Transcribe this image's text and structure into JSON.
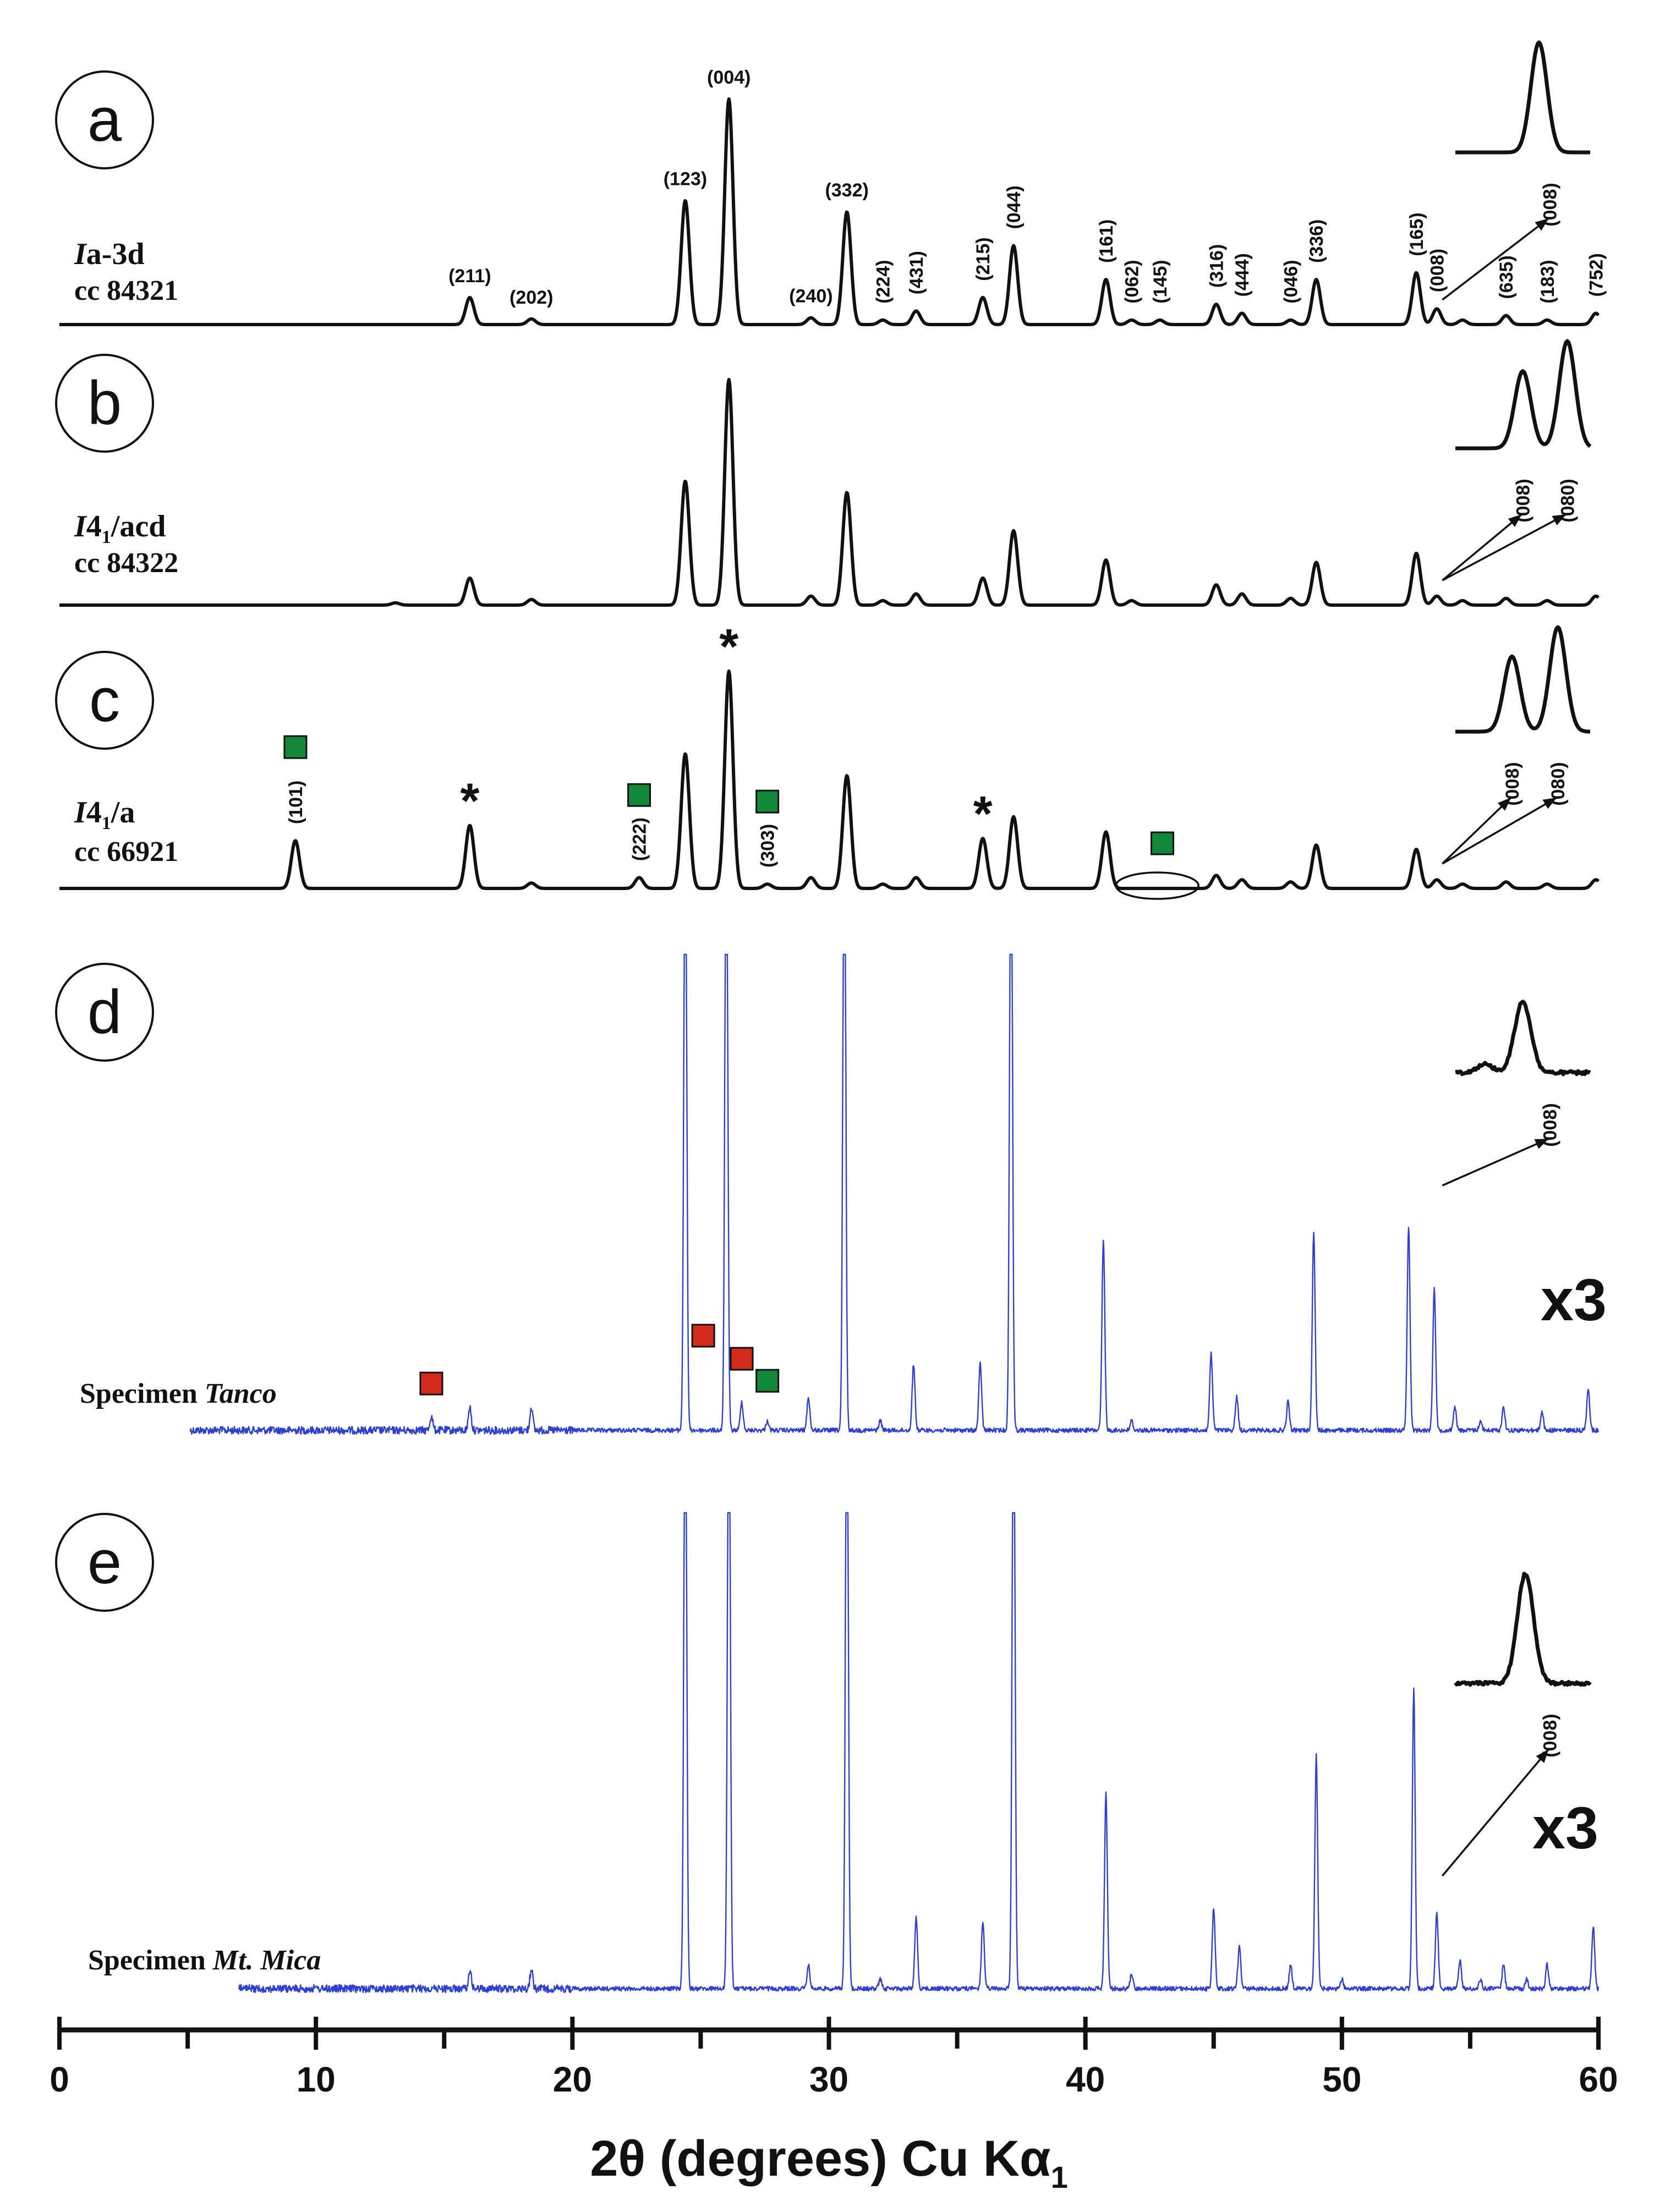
{
  "colors": {
    "calc_trace": "#111111",
    "exp_trace": "#2f3fd0",
    "green_marker": "#12873a",
    "red_marker": "#d42a1e"
  },
  "chart_data": {
    "type": "line",
    "xlabel_main": "2θ (degrees) Cu Kα",
    "xlabel_sub": "1",
    "xlim": [
      0,
      60
    ],
    "xticks": [
      0,
      10,
      20,
      30,
      40,
      50,
      60
    ],
    "minor_xticks": [
      5,
      15,
      25,
      35,
      45,
      55
    ],
    "panels": [
      {
        "letter": "a",
        "label_italic": "I",
        "label_rest": "a-3d",
        "label_sub": "",
        "code": "cc 84321",
        "kind": "calculated",
        "x_start": 0,
        "peaks": [
          {
            "x": 16.0,
            "h": 0.12
          },
          {
            "x": 18.4,
            "h": 0.025
          },
          {
            "x": 24.4,
            "h": 0.55
          },
          {
            "x": 26.1,
            "h": 1.0
          },
          {
            "x": 29.3,
            "h": 0.03
          },
          {
            "x": 30.7,
            "h": 0.5
          },
          {
            "x": 32.1,
            "h": 0.02
          },
          {
            "x": 33.4,
            "h": 0.06
          },
          {
            "x": 36.0,
            "h": 0.12
          },
          {
            "x": 37.2,
            "h": 0.35
          },
          {
            "x": 40.8,
            "h": 0.2
          },
          {
            "x": 41.8,
            "h": 0.02
          },
          {
            "x": 42.9,
            "h": 0.02
          },
          {
            "x": 45.1,
            "h": 0.09
          },
          {
            "x": 46.1,
            "h": 0.05
          },
          {
            "x": 48.0,
            "h": 0.02
          },
          {
            "x": 49.0,
            "h": 0.2
          },
          {
            "x": 52.9,
            "h": 0.23
          },
          {
            "x": 53.7,
            "h": 0.07
          },
          {
            "x": 54.7,
            "h": 0.02
          },
          {
            "x": 56.4,
            "h": 0.04
          },
          {
            "x": 58.0,
            "h": 0.02
          },
          {
            "x": 59.9,
            "h": 0.05
          }
        ],
        "annotations": [
          {
            "text": "(004)",
            "x": 26.1,
            "dir": "h"
          },
          {
            "text": "(123)",
            "x": 24.4,
            "dir": "h"
          },
          {
            "text": "(332)",
            "x": 30.7,
            "dir": "h"
          },
          {
            "text": "(211)",
            "x": 16.0,
            "dir": "h"
          },
          {
            "text": "(202)",
            "x": 18.4,
            "dir": "h"
          },
          {
            "text": "(240)",
            "x": 29.3,
            "dir": "h"
          },
          {
            "text": "(224)",
            "x": 32.1,
            "dir": "v"
          },
          {
            "text": "(431)",
            "x": 33.4,
            "dir": "v"
          },
          {
            "text": "(215)",
            "x": 36.0,
            "dir": "v"
          },
          {
            "text": "(044)",
            "x": 37.2,
            "dir": "v"
          },
          {
            "text": "(161)",
            "x": 40.8,
            "dir": "v"
          },
          {
            "text": "(062)",
            "x": 41.8,
            "dir": "v"
          },
          {
            "text": "(145)",
            "x": 42.9,
            "dir": "v"
          },
          {
            "text": "(316)",
            "x": 45.1,
            "dir": "v"
          },
          {
            "text": "(444)",
            "x": 46.1,
            "dir": "v"
          },
          {
            "text": "(046)",
            "x": 48.0,
            "dir": "v"
          },
          {
            "text": "(336)",
            "x": 49.0,
            "dir": "v"
          },
          {
            "text": "(165)",
            "x": 52.9,
            "dir": "v"
          },
          {
            "text": "(008)",
            "x": 53.7,
            "dir": "v"
          },
          {
            "text": "(635)",
            "x": 56.4,
            "dir": "v"
          },
          {
            "text": "(183)",
            "x": 58.0,
            "dir": "v"
          },
          {
            "text": "(752)",
            "x": 59.9,
            "dir": "v"
          }
        ],
        "inset": {
          "peaks": [
            {
              "p": 0.62,
              "h": 1.0
            }
          ],
          "labels": [
            "(008)"
          ]
        },
        "stars": [],
        "green_markers": [],
        "red_markers": []
      },
      {
        "letter": "b",
        "label_italic": "I",
        "label_rest": "4",
        "label_sub": "1",
        "label_tail": "/acd",
        "code": "cc 84322",
        "kind": "calculated",
        "x_start": 0,
        "peaks": [
          {
            "x": 13.1,
            "h": 0.01
          },
          {
            "x": 16.0,
            "h": 0.12
          },
          {
            "x": 18.4,
            "h": 0.025
          },
          {
            "x": 24.4,
            "h": 0.55
          },
          {
            "x": 26.1,
            "h": 1.0
          },
          {
            "x": 29.3,
            "h": 0.04
          },
          {
            "x": 30.7,
            "h": 0.5
          },
          {
            "x": 32.1,
            "h": 0.02
          },
          {
            "x": 33.4,
            "h": 0.05
          },
          {
            "x": 36.0,
            "h": 0.12
          },
          {
            "x": 37.2,
            "h": 0.33
          },
          {
            "x": 40.8,
            "h": 0.2
          },
          {
            "x": 41.8,
            "h": 0.02
          },
          {
            "x": 45.1,
            "h": 0.09
          },
          {
            "x": 46.1,
            "h": 0.05
          },
          {
            "x": 48.0,
            "h": 0.03
          },
          {
            "x": 49.0,
            "h": 0.19
          },
          {
            "x": 52.9,
            "h": 0.23
          },
          {
            "x": 53.7,
            "h": 0.04
          },
          {
            "x": 54.7,
            "h": 0.02
          },
          {
            "x": 56.4,
            "h": 0.03
          },
          {
            "x": 58.0,
            "h": 0.02
          },
          {
            "x": 59.9,
            "h": 0.04
          }
        ],
        "annotations": [],
        "inset": {
          "peaks": [
            {
              "p": 0.5,
              "h": 0.72
            },
            {
              "p": 0.83,
              "h": 1.0
            }
          ],
          "labels": [
            "(008)",
            "(080)"
          ]
        },
        "stars": [],
        "green_markers": [],
        "red_markers": []
      },
      {
        "letter": "c",
        "label_italic": "I",
        "label_rest": "4",
        "label_sub": "1",
        "label_tail": "/a",
        "code": "cc 66921",
        "kind": "calculated",
        "x_start": 0,
        "peaks": [
          {
            "x": 9.2,
            "h": 0.22
          },
          {
            "x": 16.0,
            "h": 0.29
          },
          {
            "x": 18.4,
            "h": 0.025
          },
          {
            "x": 22.6,
            "h": 0.05
          },
          {
            "x": 24.4,
            "h": 0.62
          },
          {
            "x": 26.1,
            "h": 1.0
          },
          {
            "x": 27.6,
            "h": 0.02
          },
          {
            "x": 29.3,
            "h": 0.05
          },
          {
            "x": 30.7,
            "h": 0.52
          },
          {
            "x": 32.1,
            "h": 0.02
          },
          {
            "x": 33.4,
            "h": 0.05
          },
          {
            "x": 36.0,
            "h": 0.23
          },
          {
            "x": 37.2,
            "h": 0.33
          },
          {
            "x": 40.8,
            "h": 0.26
          },
          {
            "x": 45.1,
            "h": 0.06
          },
          {
            "x": 46.1,
            "h": 0.04
          },
          {
            "x": 48.0,
            "h": 0.03
          },
          {
            "x": 49.0,
            "h": 0.2
          },
          {
            "x": 52.9,
            "h": 0.18
          },
          {
            "x": 53.7,
            "h": 0.04
          },
          {
            "x": 54.7,
            "h": 0.02
          },
          {
            "x": 56.4,
            "h": 0.03
          },
          {
            "x": 58.0,
            "h": 0.02
          },
          {
            "x": 59.9,
            "h": 0.04
          }
        ],
        "annotations": [
          {
            "text": "(101)",
            "x": 9.2,
            "dir": "v"
          },
          {
            "text": "(222)",
            "x": 22.6,
            "dir": "v"
          },
          {
            "text": "(303)",
            "x": 27.6,
            "dir": "v"
          }
        ],
        "inset": {
          "peaks": [
            {
              "p": 0.42,
              "h": 0.72
            },
            {
              "p": 0.76,
              "h": 1.0
            }
          ],
          "labels": [
            "(008)",
            "(080)"
          ]
        },
        "stars": [
          {
            "x": 16.0,
            "text": "*"
          },
          {
            "x": 26.1,
            "text": "*"
          },
          {
            "x": 36.0,
            "text": "*"
          }
        ],
        "green_markers": [
          {
            "x": 9.2
          },
          {
            "x": 22.6
          },
          {
            "x": 27.6
          },
          {
            "x": 43.0
          }
        ],
        "red_markers": [],
        "ellipse_x": 42.8
      },
      {
        "letter": "d",
        "label_prefix": "Specimen ",
        "label_specimen": "Tanco",
        "kind": "experimental",
        "x_start": 5.1,
        "scale": "x3",
        "peaks": [
          {
            "x": 14.5,
            "h": 0.03
          },
          {
            "x": 16.0,
            "h": 0.05
          },
          {
            "x": 18.4,
            "h": 0.05
          },
          {
            "x": 24.4,
            "h": 1.4
          },
          {
            "x": 26.0,
            "h": 1.4
          },
          {
            "x": 26.6,
            "h": 0.06
          },
          {
            "x": 27.6,
            "h": 0.02
          },
          {
            "x": 29.2,
            "h": 0.07
          },
          {
            "x": 30.6,
            "h": 1.4
          },
          {
            "x": 32.0,
            "h": 0.02
          },
          {
            "x": 33.3,
            "h": 0.14
          },
          {
            "x": 35.9,
            "h": 0.14
          },
          {
            "x": 37.1,
            "h": 1.4
          },
          {
            "x": 40.7,
            "h": 0.4
          },
          {
            "x": 41.8,
            "h": 0.02
          },
          {
            "x": 44.9,
            "h": 0.16
          },
          {
            "x": 45.9,
            "h": 0.07
          },
          {
            "x": 47.9,
            "h": 0.06
          },
          {
            "x": 48.9,
            "h": 0.42
          },
          {
            "x": 52.6,
            "h": 0.43
          },
          {
            "x": 53.6,
            "h": 0.3
          },
          {
            "x": 54.4,
            "h": 0.05
          },
          {
            "x": 55.4,
            "h": 0.02
          },
          {
            "x": 56.3,
            "h": 0.05
          },
          {
            "x": 57.8,
            "h": 0.04
          },
          {
            "x": 59.6,
            "h": 0.09
          }
        ],
        "annotations": [],
        "inset": {
          "peaks": [
            {
              "p": 0.22,
              "h": 0.12
            },
            {
              "p": 0.5,
              "h": 1.0
            }
          ],
          "labels": [
            "(008)"
          ]
        },
        "stars": [],
        "green_markers": [
          {
            "x": 27.6
          }
        ],
        "red_markers": [
          {
            "x": 14.5
          },
          {
            "x": 25.1
          },
          {
            "x": 26.6
          }
        ]
      },
      {
        "letter": "e",
        "label_prefix": "Specimen ",
        "label_specimen": "Mt. Mica",
        "kind": "experimental",
        "x_start": 7.0,
        "scale": "x3",
        "peaks": [
          {
            "x": 16.0,
            "h": 0.04
          },
          {
            "x": 18.4,
            "h": 0.04
          },
          {
            "x": 24.4,
            "h": 1.4
          },
          {
            "x": 26.1,
            "h": 1.4
          },
          {
            "x": 29.2,
            "h": 0.05
          },
          {
            "x": 30.7,
            "h": 1.4
          },
          {
            "x": 32.0,
            "h": 0.02
          },
          {
            "x": 33.4,
            "h": 0.15
          },
          {
            "x": 36.0,
            "h": 0.14
          },
          {
            "x": 37.2,
            "h": 1.4
          },
          {
            "x": 40.8,
            "h": 0.41
          },
          {
            "x": 41.8,
            "h": 0.03
          },
          {
            "x": 45.0,
            "h": 0.17
          },
          {
            "x": 46.0,
            "h": 0.09
          },
          {
            "x": 48.0,
            "h": 0.05
          },
          {
            "x": 49.0,
            "h": 0.49
          },
          {
            "x": 50.0,
            "h": 0.02
          },
          {
            "x": 52.8,
            "h": 0.63
          },
          {
            "x": 53.7,
            "h": 0.16
          },
          {
            "x": 54.6,
            "h": 0.06
          },
          {
            "x": 55.4,
            "h": 0.02
          },
          {
            "x": 56.3,
            "h": 0.05
          },
          {
            "x": 57.2,
            "h": 0.02
          },
          {
            "x": 58.0,
            "h": 0.05
          },
          {
            "x": 59.8,
            "h": 0.13
          }
        ],
        "annotations": [],
        "inset": {
          "peaks": [
            {
              "p": 0.52,
              "h": 1.0
            }
          ],
          "labels": [
            "(008)"
          ]
        },
        "stars": [],
        "green_markers": [],
        "red_markers": []
      }
    ]
  }
}
